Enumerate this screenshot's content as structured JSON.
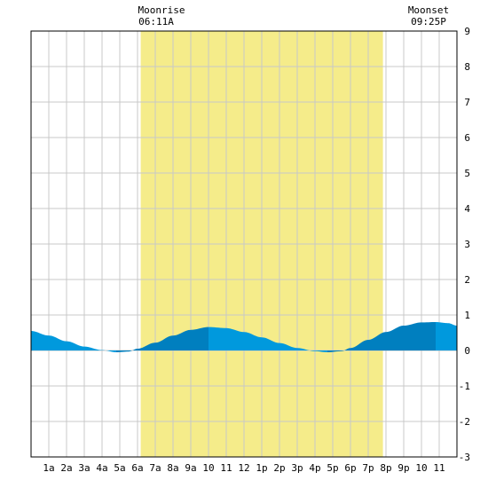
{
  "chart_data": {
    "type": "area",
    "title": "",
    "xlabel": "",
    "ylabel": "",
    "ylim": [
      -3,
      9
    ],
    "xlim": [
      0,
      24
    ],
    "grid": true,
    "yticks": [
      -3,
      -2,
      -1,
      0,
      1,
      2,
      3,
      4,
      5,
      6,
      7,
      8,
      9
    ],
    "xtick_labels": [
      "1a",
      "2a",
      "3a",
      "4a",
      "5a",
      "6a",
      "7a",
      "8a",
      "9a",
      "10",
      "11",
      "12",
      "1p",
      "2p",
      "3p",
      "4p",
      "5p",
      "6p",
      "7p",
      "8p",
      "9p",
      "10",
      "11"
    ],
    "moonrise": {
      "label": "Moonrise",
      "time": "06:11A",
      "hour": 6.18
    },
    "moonset": {
      "label": "Moonset",
      "time": "09:25P",
      "hour": 19.83
    },
    "series": [
      {
        "x": [
          0,
          1,
          2,
          3,
          4,
          4.8,
          5.5,
          6,
          7,
          8,
          9,
          10,
          11,
          12,
          13,
          14,
          15,
          16,
          16.7,
          17.5,
          18,
          19,
          20,
          21,
          22,
          22.8,
          23.5,
          24
        ],
        "values": [
          0.55,
          0.42,
          0.26,
          0.11,
          0.01,
          -0.05,
          -0.03,
          0.05,
          0.22,
          0.42,
          0.58,
          0.66,
          0.63,
          0.52,
          0.37,
          0.21,
          0.07,
          -0.02,
          -0.05,
          -0.02,
          0.07,
          0.3,
          0.52,
          0.7,
          0.79,
          0.8,
          0.77,
          0.7
        ]
      }
    ],
    "colors": {
      "moon_band": "#f5ec8a",
      "fill_light": "#0099dd",
      "fill_dark": "#007fbf",
      "grid": "#c8c8c8",
      "frame": "#000000"
    }
  }
}
